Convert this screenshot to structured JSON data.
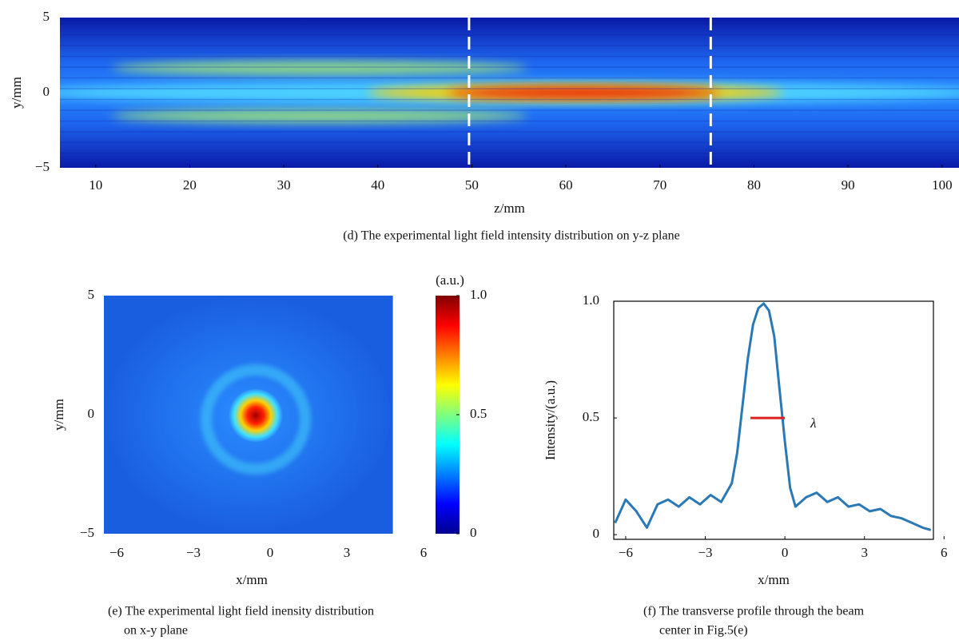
{
  "chart_data": [
    {
      "type": "heatmap",
      "caption": "(d) The experimental light field intensity distribution on y-z plane",
      "xlabel": "z/mm",
      "ylabel": "y/mm",
      "xlim": [
        6.2,
        101.8
      ],
      "xticks": [
        10,
        20,
        30,
        40,
        50,
        60,
        70,
        80,
        90,
        100
      ],
      "ylim": [
        -5,
        5
      ],
      "yticks": [
        {
          "value": -5,
          "label": "−5"
        },
        0,
        5
      ],
      "vlines": [
        49.7,
        75.4
      ]
    },
    {
      "type": "heatmap",
      "caption": [
        "(e) The experimental light field inensity distribution",
        "on x-y plane"
      ],
      "xlabel": "x/mm",
      "ylabel": "y/mm",
      "xlim": [
        -6.5,
        6
      ],
      "image_xlim": [
        -6.5,
        4.8
      ],
      "xticks": [
        {
          "value": -6,
          "label": "−6"
        },
        {
          "value": -3,
          "label": "−3"
        },
        0,
        3,
        6
      ],
      "ylim": [
        -5,
        5
      ],
      "yticks": [
        {
          "value": -5,
          "label": "−5"
        },
        0,
        5
      ],
      "colorbar": {
        "label": "(a.u.)",
        "lim": [
          0,
          1
        ],
        "ticks": [
          0,
          0.5,
          {
            "value": 1,
            "label": "1.0"
          }
        ]
      }
    },
    {
      "type": "line",
      "caption": [
        "(f) The transverse profile through the beam",
        "center in Fig.5(e)"
      ],
      "xlabel": "x/mm",
      "ylabel": "Intensity/(a.u.)",
      "xlim": [
        -6.45,
        5.6
      ],
      "xticks": [
        {
          "value": -6,
          "label": "−6"
        },
        {
          "value": -3,
          "label": "−3"
        },
        0,
        3,
        6
      ],
      "ylim": [
        -0.02,
        1.0
      ],
      "yticks": [
        0,
        0.5,
        {
          "value": 1,
          "label": "1.0"
        }
      ],
      "color": "#2a78b4",
      "x": [
        -6.4,
        -6.0,
        -5.6,
        -5.2,
        -4.8,
        -4.4,
        -4.0,
        -3.6,
        -3.2,
        -2.8,
        -2.4,
        -2.0,
        -1.8,
        -1.6,
        -1.4,
        -1.2,
        -1.0,
        -0.8,
        -0.6,
        -0.4,
        -0.2,
        0,
        0.2,
        0.4,
        0.8,
        1.2,
        1.6,
        2.0,
        2.4,
        2.8,
        3.2,
        3.6,
        4.0,
        4.4,
        4.8,
        5.2,
        5.5
      ],
      "values": [
        0.05,
        0.15,
        0.1,
        0.03,
        0.13,
        0.15,
        0.12,
        0.16,
        0.13,
        0.17,
        0.14,
        0.22,
        0.35,
        0.55,
        0.75,
        0.9,
        0.97,
        0.99,
        0.96,
        0.85,
        0.62,
        0.4,
        0.2,
        0.12,
        0.16,
        0.18,
        0.14,
        0.16,
        0.12,
        0.13,
        0.1,
        0.11,
        0.08,
        0.07,
        0.05,
        0.03,
        0.02
      ],
      "fwhm": {
        "y": 0.5,
        "x": [
          -1.3,
          0
        ],
        "color": "#e02020",
        "label": "λ"
      }
    }
  ]
}
